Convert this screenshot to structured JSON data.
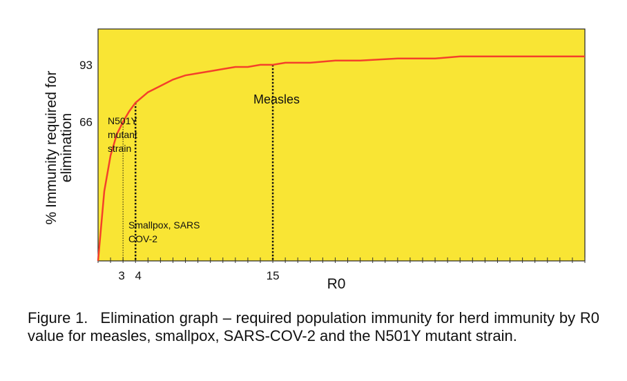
{
  "chart_data": {
    "type": "line",
    "title": "",
    "xlabel": "R0",
    "ylabel": "% Immunity required for elimination",
    "xlim": [
      1,
      40
    ],
    "ylim": [
      0,
      110
    ],
    "grid": false,
    "background_color": "#F9E534",
    "line_color": "#F4402A",
    "series": [
      {
        "name": "",
        "x": [
          1,
          1.5,
          2,
          2.5,
          3,
          3.5,
          4,
          5,
          6,
          7,
          8,
          9,
          10,
          11,
          12,
          13,
          14,
          15,
          16,
          17,
          18,
          20,
          22,
          25,
          28,
          30,
          40
        ],
        "y": [
          0,
          33,
          50,
          60,
          66,
          71,
          75,
          80,
          83,
          86,
          88,
          89,
          90,
          91,
          92,
          92,
          93,
          93,
          94,
          94,
          94,
          95,
          95,
          96,
          96,
          97,
          97
        ]
      }
    ],
    "x_tick_labels": [
      {
        "x": 3,
        "label": "3"
      },
      {
        "x": 4,
        "label": "4"
      },
      {
        "x": 15,
        "label": "15"
      }
    ],
    "y_tick_labels": [
      {
        "y": 66,
        "label": "66"
      },
      {
        "y": 93,
        "label": "93"
      }
    ],
    "markers": [
      {
        "x": 3,
        "y": 66,
        "style": "thin"
      },
      {
        "x": 4,
        "y": 75,
        "style": "thick"
      },
      {
        "x": 15,
        "y": 93,
        "style": "thick"
      }
    ],
    "annotations": [
      {
        "text": "Measles"
      },
      {
        "text": "N501Y mutant strain"
      },
      {
        "text": "Smallpox, SARS COV-2"
      }
    ]
  },
  "caption": {
    "number": "Figure 1.",
    "text": "Elimination graph – required population immunity for herd immunity by R0 value for measles, smallpox, SARS-COV-2 and the N501Y mutant strain."
  }
}
